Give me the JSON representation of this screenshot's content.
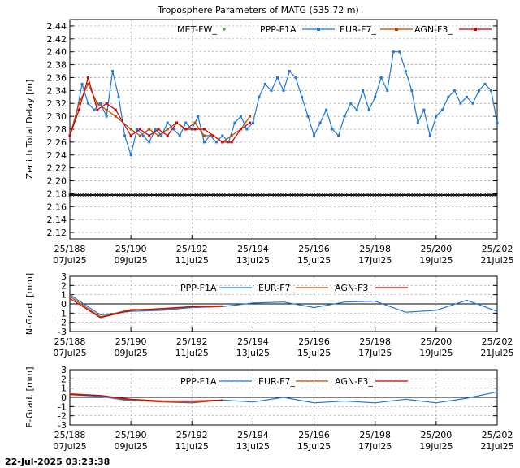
{
  "title": "Troposphere Parameters of MATG (535.72 m)",
  "timestamp": "22-Jul-2025 03:23:38",
  "colors": {
    "MET-FW_": "#22aa22",
    "PPP-F1A": "#1f77d4",
    "EUR-F7_": "#b34a00",
    "AGN-F3_": "#cc0000",
    "ref_line": "#000000"
  },
  "chart_data": [
    {
      "type": "line",
      "ylabel": "Zenith Total Delay [m]",
      "x_ticks": [
        {
          "x": 188,
          "top": "25/188",
          "bottom": "07Jul25"
        },
        {
          "x": 190,
          "top": "25/190",
          "bottom": "09Jul25"
        },
        {
          "x": 192,
          "top": "25/192",
          "bottom": "11Jul25"
        },
        {
          "x": 194,
          "top": "25/194",
          "bottom": "13Jul25"
        },
        {
          "x": 196,
          "top": "25/196",
          "bottom": "15Jul25"
        },
        {
          "x": 198,
          "top": "25/198",
          "bottom": "17Jul25"
        },
        {
          "x": 200,
          "top": "25/200",
          "bottom": "19Jul25"
        },
        {
          "x": 202,
          "top": "25/202",
          "bottom": "21Jul25"
        }
      ],
      "xlim": [
        188,
        202
      ],
      "ylim": [
        2.11,
        2.45
      ],
      "y_ticks": [
        "2.12",
        "2.14",
        "2.16",
        "2.18",
        "2.20",
        "2.22",
        "2.24",
        "2.26",
        "2.28",
        "2.30",
        "2.32",
        "2.34",
        "2.36",
        "2.38",
        "2.40",
        "2.42",
        "2.44"
      ],
      "legend": [
        "MET-FW_",
        "PPP-F1A",
        "EUR-F7_",
        "AGN-F3_"
      ],
      "reference_line": 2.178,
      "series": [
        {
          "name": "PPP-F1A",
          "x": [
            188.0,
            188.2,
            188.4,
            188.6,
            188.8,
            189.0,
            189.2,
            189.4,
            189.6,
            189.8,
            190.0,
            190.2,
            190.4,
            190.6,
            190.8,
            191.0,
            191.2,
            191.4,
            191.6,
            191.8,
            192.0,
            192.2,
            192.4,
            192.6,
            192.8,
            193.0,
            193.2,
            193.4,
            193.6,
            193.8,
            194.0,
            194.2,
            194.4,
            194.6,
            194.8,
            195.0,
            195.2,
            195.4,
            195.6,
            195.8,
            196.0,
            196.2,
            196.4,
            196.6,
            196.8,
            197.0,
            197.2,
            197.4,
            197.6,
            197.8,
            198.0,
            198.2,
            198.4,
            198.6,
            198.8,
            199.0,
            199.2,
            199.4,
            199.6,
            199.8,
            200.0,
            200.2,
            200.4,
            200.6,
            200.8,
            201.0,
            201.2,
            201.4,
            201.6,
            201.8,
            202.0
          ],
          "values": [
            2.27,
            2.3,
            2.35,
            2.32,
            2.31,
            2.32,
            2.3,
            2.37,
            2.33,
            2.27,
            2.24,
            2.28,
            2.27,
            2.26,
            2.28,
            2.27,
            2.29,
            2.28,
            2.27,
            2.29,
            2.28,
            2.3,
            2.26,
            2.27,
            2.26,
            2.27,
            2.26,
            2.29,
            2.3,
            2.28,
            2.29,
            2.33,
            2.35,
            2.34,
            2.36,
            2.34,
            2.37,
            2.36,
            2.33,
            2.3,
            2.27,
            2.29,
            2.31,
            2.28,
            2.27,
            2.3,
            2.32,
            2.31,
            2.34,
            2.31,
            2.33,
            2.36,
            2.34,
            2.4,
            2.4,
            2.37,
            2.34,
            2.29,
            2.31,
            2.27,
            2.3,
            2.31,
            2.33,
            2.34,
            2.32,
            2.33,
            2.32,
            2.34,
            2.35,
            2.34,
            2.29
          ]
        },
        {
          "name": "EUR-F7_",
          "x": [
            188.0,
            188.3,
            188.6,
            188.9,
            189.2,
            189.5,
            190.0,
            190.3,
            190.6,
            190.9,
            191.2,
            191.5,
            191.8,
            192.1,
            192.4,
            192.7,
            193.0,
            193.3,
            193.6,
            193.9
          ],
          "values": [
            2.27,
            2.32,
            2.35,
            2.32,
            2.31,
            2.3,
            2.28,
            2.27,
            2.28,
            2.27,
            2.28,
            2.29,
            2.28,
            2.29,
            2.27,
            2.27,
            2.26,
            2.27,
            2.28,
            2.3
          ]
        },
        {
          "name": "AGN-F3_",
          "x": [
            188.0,
            188.3,
            188.6,
            188.9,
            189.2,
            189.5,
            190.0,
            190.3,
            190.6,
            190.9,
            191.2,
            191.5,
            191.8,
            192.1,
            192.4,
            192.7,
            193.0,
            193.3,
            193.6,
            193.9
          ],
          "values": [
            2.27,
            2.31,
            2.36,
            2.31,
            2.32,
            2.31,
            2.27,
            2.28,
            2.27,
            2.28,
            2.27,
            2.29,
            2.28,
            2.28,
            2.28,
            2.27,
            2.26,
            2.26,
            2.28,
            2.29
          ]
        }
      ]
    },
    {
      "type": "line",
      "ylabel": "N-Grad. [mm]",
      "xlim": [
        188,
        202
      ],
      "ylim": [
        -3,
        3
      ],
      "y_ticks": [
        "-3",
        "-2",
        "-1",
        "0",
        "1",
        "2",
        "3"
      ],
      "legend": [
        "PPP-F1A",
        "EUR-F7_",
        "AGN-F3_"
      ],
      "x_ticks": [
        {
          "x": 188,
          "top": "25/188",
          "bottom": "07Jul25"
        },
        {
          "x": 190,
          "top": "25/190",
          "bottom": "09Jul25"
        },
        {
          "x": 192,
          "top": "25/192",
          "bottom": "11Jul25"
        },
        {
          "x": 194,
          "top": "25/194",
          "bottom": "13Jul25"
        },
        {
          "x": 196,
          "top": "25/196",
          "bottom": "15Jul25"
        },
        {
          "x": 198,
          "top": "25/198",
          "bottom": "17Jul25"
        },
        {
          "x": 200,
          "top": "25/200",
          "bottom": "19Jul25"
        },
        {
          "x": 202,
          "top": "25/202",
          "bottom": "21Jul25"
        }
      ],
      "series": [
        {
          "name": "PPP-F1A",
          "x": [
            188,
            189,
            190,
            191,
            192,
            193,
            194,
            195,
            196,
            197,
            198,
            199,
            200,
            201,
            202
          ],
          "values": [
            1.0,
            -1.2,
            -0.8,
            -0.7,
            -0.4,
            -0.3,
            0.1,
            0.2,
            -0.4,
            0.2,
            0.3,
            -0.9,
            -0.7,
            0.4,
            -0.8
          ]
        },
        {
          "name": "EUR-F7_",
          "x": [
            188,
            189,
            190,
            191,
            192,
            193
          ],
          "values": [
            0.8,
            -1.4,
            -0.6,
            -0.6,
            -0.3,
            -0.3
          ]
        },
        {
          "name": "AGN-F3_",
          "x": [
            188,
            189,
            190,
            191,
            192,
            193
          ],
          "values": [
            0.6,
            -1.5,
            -0.7,
            -0.5,
            -0.3,
            -0.2
          ]
        }
      ]
    },
    {
      "type": "line",
      "ylabel": "E-Grad. [mm]",
      "xlim": [
        188,
        202
      ],
      "ylim": [
        -3,
        3
      ],
      "y_ticks": [
        "-3",
        "-2",
        "-1",
        "0",
        "1",
        "2",
        "3"
      ],
      "legend": [
        "PPP-F1A",
        "EUR-F7_",
        "AGN-F3_"
      ],
      "x_ticks": [
        {
          "x": 188,
          "top": "25/188",
          "bottom": "07Jul25"
        },
        {
          "x": 190,
          "top": "25/190",
          "bottom": "09Jul25"
        },
        {
          "x": 192,
          "top": "25/192",
          "bottom": "11Jul25"
        },
        {
          "x": 194,
          "top": "25/194",
          "bottom": "13Jul25"
        },
        {
          "x": 196,
          "top": "25/196",
          "bottom": "15Jul25"
        },
        {
          "x": 198,
          "top": "25/198",
          "bottom": "17Jul25"
        },
        {
          "x": 200,
          "top": "25/200",
          "bottom": "19Jul25"
        },
        {
          "x": 202,
          "top": "25/202",
          "bottom": "21Jul25"
        }
      ],
      "series": [
        {
          "name": "PPP-F1A",
          "x": [
            188,
            189,
            190,
            191,
            192,
            193,
            194,
            195,
            196,
            197,
            198,
            199,
            200,
            201,
            202
          ],
          "values": [
            0.3,
            0.1,
            -0.4,
            -0.4,
            -0.5,
            -0.3,
            -0.5,
            0.0,
            -0.6,
            -0.4,
            -0.6,
            -0.2,
            -0.6,
            -0.1,
            0.6
          ]
        },
        {
          "name": "EUR-F7_",
          "x": [
            188,
            189,
            190,
            191,
            192,
            193
          ],
          "values": [
            0.4,
            0.2,
            -0.3,
            -0.5,
            -0.6,
            -0.3
          ]
        },
        {
          "name": "AGN-F3_",
          "x": [
            188,
            189,
            190,
            191,
            192,
            193
          ],
          "values": [
            0.3,
            0.2,
            -0.2,
            -0.4,
            -0.4,
            -0.3
          ]
        }
      ]
    }
  ]
}
